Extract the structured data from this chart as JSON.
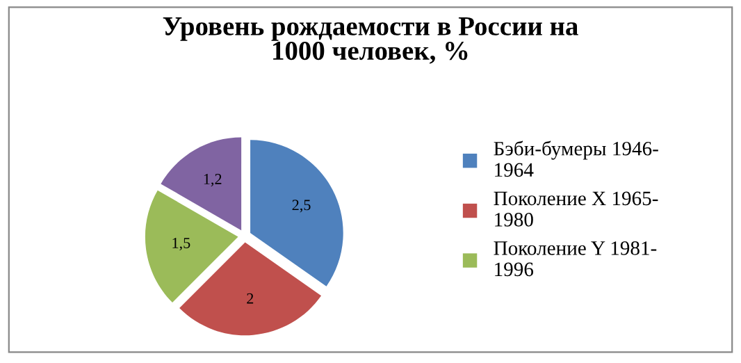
{
  "chart_data": {
    "type": "pie",
    "title": "Уровень рождаемости в России на 1000 человек, %",
    "categories": [
      "Бэби-бумеры 1946-1964",
      "Поколение Х 1965-1980",
      "Поколение Y 1981-1996",
      null
    ],
    "values": [
      2.5,
      2,
      1.5,
      1.2
    ],
    "colors": [
      "#4f81bd",
      "#c0504d",
      "#9bbb59",
      "#8064a2"
    ],
    "value_labels": [
      "2,5",
      "2",
      "1,5",
      "1,2"
    ],
    "legend": "right"
  }
}
